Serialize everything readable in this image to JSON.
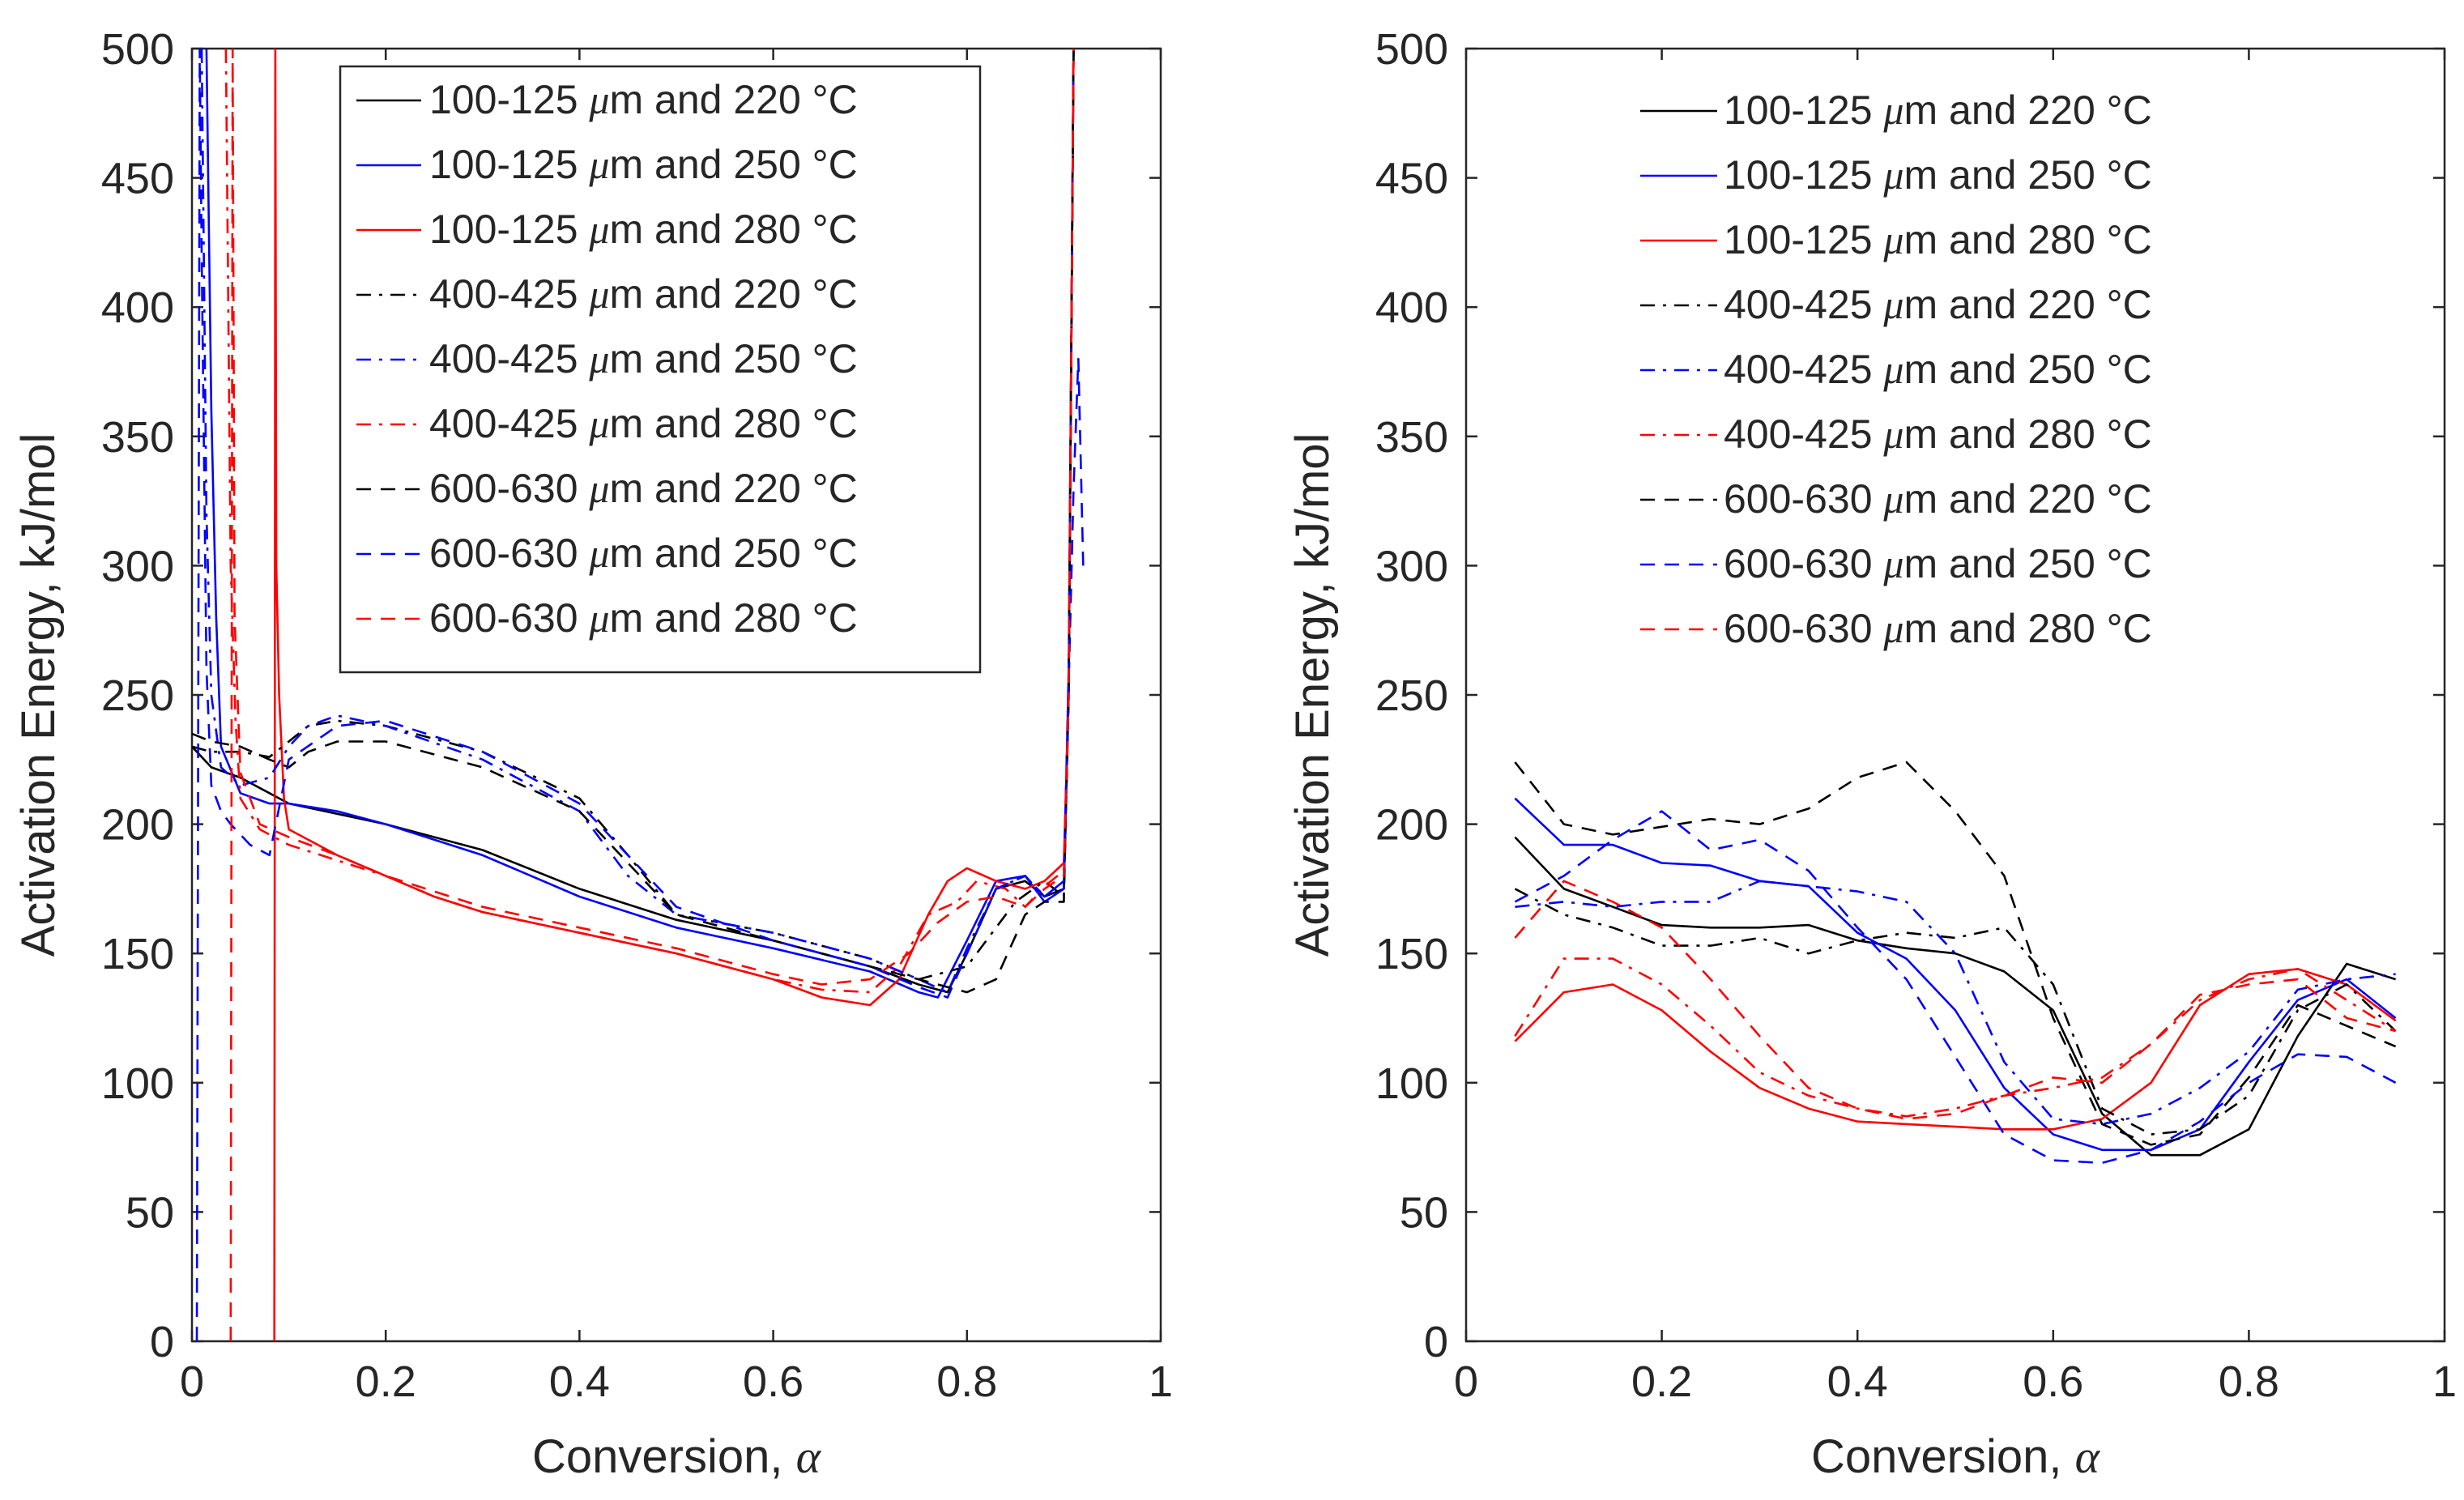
{
  "chart_data": [
    {
      "type": "line",
      "panel": "left",
      "xlabel": "Conversion, α",
      "ylabel": "Activation Energy, kJ/mol",
      "xlim": [
        0,
        1
      ],
      "ylim": [
        0,
        500
      ],
      "xticks": [
        0,
        0.2,
        0.4,
        0.6,
        0.8,
        1
      ],
      "xtick_labels": [
        "0",
        "0.2",
        "0.4",
        "0.6",
        "0.8",
        "1"
      ],
      "yticks": [
        0,
        50,
        100,
        150,
        200,
        250,
        300,
        350,
        400,
        450,
        500
      ],
      "ytick_labels": [
        "0",
        "50",
        "100",
        "150",
        "200",
        "250",
        "300",
        "350",
        "400",
        "450",
        "500"
      ],
      "grid": false,
      "legend_position": "top-right",
      "series": [
        {
          "name": "100-125 μm and 220 °C",
          "color": "#000000",
          "dash": "solid",
          "x": [
            0.0,
            0.02,
            0.05,
            0.08,
            0.1,
            0.15,
            0.2,
            0.3,
            0.4,
            0.5,
            0.6,
            0.65,
            0.7,
            0.75,
            0.78,
            0.8,
            0.83,
            0.86,
            0.88,
            0.9,
            0.905,
            0.91
          ],
          "y": [
            230,
            222,
            218,
            212,
            208,
            204,
            200,
            190,
            175,
            163,
            155,
            150,
            145,
            138,
            135,
            150,
            175,
            178,
            172,
            175,
            250,
            500
          ]
        },
        {
          "name": "100-125 μm and 250 °C",
          "color": "#0000ff",
          "dash": "solid",
          "x": [
            0.015,
            0.02,
            0.025,
            0.03,
            0.05,
            0.08,
            0.1,
            0.15,
            0.2,
            0.3,
            0.4,
            0.5,
            0.6,
            0.7,
            0.75,
            0.77,
            0.8,
            0.83,
            0.86,
            0.88,
            0.9,
            0.905,
            0.91
          ],
          "y": [
            500,
            360,
            280,
            230,
            212,
            208,
            208,
            205,
            200,
            188,
            172,
            160,
            152,
            143,
            135,
            133,
            155,
            178,
            180,
            170,
            175,
            260,
            500
          ]
        },
        {
          "name": "100-125 μm and 280 °C",
          "color": "#ff0000",
          "dash": "solid",
          "x": [
            0.085,
            0.086,
            0.087,
            0.09,
            0.095,
            0.1,
            0.15,
            0.2,
            0.25,
            0.3,
            0.4,
            0.5,
            0.6,
            0.65,
            0.7,
            0.73,
            0.76,
            0.78,
            0.8,
            0.83,
            0.86,
            0.88,
            0.9,
            0.905,
            0.91
          ],
          "y": [
            0,
            500,
            300,
            250,
            210,
            198,
            188,
            180,
            172,
            166,
            158,
            150,
            140,
            133,
            130,
            140,
            165,
            178,
            183,
            178,
            175,
            178,
            185,
            250,
            500
          ]
        },
        {
          "name": "400-425 μm and 220 °C",
          "color": "#000000",
          "dash": "dashdot",
          "x": [
            0.0,
            0.02,
            0.05,
            0.08,
            0.1,
            0.12,
            0.15,
            0.2,
            0.3,
            0.4,
            0.45,
            0.5,
            0.6,
            0.7,
            0.75,
            0.8,
            0.85,
            0.88,
            0.9,
            0.905,
            0.91
          ],
          "y": [
            230,
            228,
            228,
            226,
            232,
            238,
            240,
            238,
            228,
            210,
            188,
            165,
            158,
            148,
            140,
            145,
            170,
            178,
            172,
            250,
            500
          ]
        },
        {
          "name": "400-425 μm and 250 °C",
          "color": "#0000ff",
          "dash": "dashdot",
          "x": [
            0.01,
            0.015,
            0.02,
            0.03,
            0.05,
            0.08,
            0.1,
            0.12,
            0.15,
            0.2,
            0.3,
            0.4,
            0.45,
            0.5,
            0.6,
            0.7,
            0.75,
            0.78,
            0.8,
            0.83,
            0.86,
            0.88,
            0.9,
            0.905,
            0.91
          ],
          "y": [
            500,
            320,
            250,
            222,
            215,
            218,
            230,
            238,
            242,
            238,
            225,
            205,
            180,
            165,
            158,
            148,
            140,
            135,
            152,
            175,
            180,
            172,
            178,
            260,
            500
          ]
        },
        {
          "name": "400-425 μm and 280 °C",
          "color": "#ff0000",
          "dash": "dashdot",
          "x": [
            0.035,
            0.04,
            0.045,
            0.05,
            0.07,
            0.1,
            0.15,
            0.2,
            0.25,
            0.3,
            0.4,
            0.5,
            0.6,
            0.65,
            0.7,
            0.73,
            0.76,
            0.79,
            0.81,
            0.84,
            0.86,
            0.88,
            0.9,
            0.905,
            0.91
          ],
          "y": [
            500,
            300,
            240,
            210,
            198,
            192,
            186,
            180,
            172,
            166,
            158,
            150,
            140,
            136,
            135,
            145,
            165,
            170,
            178,
            175,
            168,
            176,
            182,
            250,
            500
          ]
        },
        {
          "name": "600-630 μm and 220 °C",
          "color": "#000000",
          "dash": "dashed",
          "x": [
            0.0,
            0.02,
            0.05,
            0.08,
            0.1,
            0.12,
            0.15,
            0.2,
            0.3,
            0.4,
            0.45,
            0.5,
            0.6,
            0.7,
            0.75,
            0.8,
            0.83,
            0.86,
            0.88,
            0.9,
            0.905,
            0.91
          ],
          "y": [
            235,
            232,
            230,
            225,
            222,
            228,
            232,
            232,
            222,
            205,
            185,
            165,
            155,
            145,
            140,
            135,
            140,
            165,
            170,
            170,
            250,
            500
          ]
        },
        {
          "name": "600-630 μm and 250 °C",
          "color": "#0000ff",
          "dash": "dashed",
          "x": [
            0.005,
            0.008,
            0.01,
            0.015,
            0.02,
            0.03,
            0.04,
            0.06,
            0.08,
            0.1,
            0.15,
            0.2,
            0.3,
            0.4,
            0.45,
            0.5,
            0.6,
            0.7,
            0.75,
            0.78,
            0.8,
            0.83,
            0.86,
            0.88,
            0.9,
            0.91,
            0.915,
            0.92
          ],
          "y": [
            0,
            500,
            420,
            260,
            215,
            205,
            200,
            192,
            188,
            225,
            238,
            240,
            228,
            208,
            188,
            168,
            155,
            145,
            137,
            133,
            150,
            175,
            180,
            172,
            178,
            330,
            380,
            300
          ]
        },
        {
          "name": "600-630 μm and 280 °C",
          "color": "#ff0000",
          "dash": "dashed",
          "x": [
            0.04,
            0.042,
            0.044,
            0.05,
            0.07,
            0.1,
            0.15,
            0.2,
            0.3,
            0.4,
            0.5,
            0.6,
            0.65,
            0.7,
            0.74,
            0.77,
            0.8,
            0.83,
            0.86,
            0.88,
            0.9,
            0.905,
            0.91
          ],
          "y": [
            0,
            500,
            280,
            220,
            200,
            195,
            188,
            180,
            168,
            160,
            152,
            142,
            138,
            140,
            150,
            162,
            170,
            172,
            168,
            175,
            180,
            250,
            500
          ]
        }
      ]
    },
    {
      "type": "line",
      "panel": "right",
      "xlabel": "Conversion, α",
      "ylabel": "Activation Energy, kJ/mol",
      "xlim": [
        0,
        1
      ],
      "ylim": [
        0,
        500
      ],
      "xticks": [
        0,
        0.2,
        0.4,
        0.6,
        0.8,
        1
      ],
      "xtick_labels": [
        "0",
        "0.2",
        "0.4",
        "0.6",
        "0.8",
        "1"
      ],
      "yticks": [
        0,
        50,
        100,
        150,
        200,
        250,
        300,
        350,
        400,
        450,
        500
      ],
      "ytick_labels": [
        "0",
        "50",
        "100",
        "150",
        "200",
        "250",
        "300",
        "350",
        "400",
        "450",
        "500"
      ],
      "grid": false,
      "legend_position": "top-right (no box)",
      "series": [
        {
          "name": "100-125 μm and 220 °C",
          "color": "#000000",
          "dash": "solid",
          "x": [
            0.05,
            0.1,
            0.15,
            0.2,
            0.25,
            0.3,
            0.35,
            0.4,
            0.45,
            0.5,
            0.55,
            0.6,
            0.65,
            0.7,
            0.75,
            0.8,
            0.85,
            0.9,
            0.95
          ],
          "y": [
            195,
            175,
            168,
            161,
            160,
            160,
            161,
            155,
            152,
            150,
            143,
            128,
            88,
            72,
            72,
            82,
            118,
            146,
            140
          ]
        },
        {
          "name": "100-125 μm and 250 °C",
          "color": "#0000ff",
          "dash": "solid",
          "x": [
            0.05,
            0.1,
            0.15,
            0.2,
            0.25,
            0.3,
            0.35,
            0.4,
            0.45,
            0.5,
            0.55,
            0.6,
            0.65,
            0.7,
            0.75,
            0.8,
            0.85,
            0.9,
            0.95
          ],
          "y": [
            210,
            192,
            192,
            185,
            184,
            178,
            176,
            158,
            148,
            128,
            98,
            80,
            74,
            74,
            82,
            108,
            132,
            140,
            125
          ]
        },
        {
          "name": "100-125 μm and 280 °C",
          "color": "#ff0000",
          "dash": "solid",
          "x": [
            0.05,
            0.1,
            0.15,
            0.2,
            0.25,
            0.3,
            0.35,
            0.4,
            0.45,
            0.5,
            0.55,
            0.6,
            0.65,
            0.7,
            0.75,
            0.8,
            0.85,
            0.9,
            0.95
          ],
          "y": [
            116,
            135,
            138,
            128,
            112,
            98,
            90,
            85,
            84,
            83,
            82,
            82,
            86,
            100,
            130,
            142,
            144,
            138,
            124
          ]
        },
        {
          "name": "400-425 μm and 220 °C",
          "color": "#000000",
          "dash": "dashdot",
          "x": [
            0.05,
            0.1,
            0.15,
            0.2,
            0.25,
            0.3,
            0.35,
            0.4,
            0.45,
            0.5,
            0.55,
            0.6,
            0.65,
            0.7,
            0.75,
            0.8,
            0.85,
            0.9,
            0.95
          ],
          "y": [
            175,
            165,
            160,
            153,
            153,
            156,
            150,
            155,
            158,
            156,
            160,
            138,
            90,
            80,
            82,
            95,
            128,
            138,
            120
          ]
        },
        {
          "name": "400-425 μm and 250 °C",
          "color": "#0000ff",
          "dash": "dashdot",
          "x": [
            0.05,
            0.1,
            0.15,
            0.2,
            0.25,
            0.3,
            0.35,
            0.4,
            0.45,
            0.5,
            0.55,
            0.6,
            0.65,
            0.7,
            0.75,
            0.8,
            0.85,
            0.9,
            0.95
          ],
          "y": [
            168,
            170,
            168,
            170,
            170,
            178,
            176,
            174,
            170,
            150,
            108,
            86,
            84,
            88,
            98,
            112,
            136,
            140,
            142
          ]
        },
        {
          "name": "400-425 μm and 280 °C",
          "color": "#ff0000",
          "dash": "dashdot",
          "x": [
            0.05,
            0.1,
            0.15,
            0.2,
            0.25,
            0.3,
            0.35,
            0.4,
            0.45,
            0.5,
            0.55,
            0.6,
            0.65,
            0.7,
            0.75,
            0.8,
            0.85,
            0.9,
            0.95
          ],
          "y": [
            118,
            148,
            148,
            138,
            122,
            104,
            95,
            90,
            87,
            90,
            95,
            98,
            102,
            115,
            132,
            140,
            144,
            132,
            120
          ]
        },
        {
          "name": "600-630 μm and 220 °C",
          "color": "#000000",
          "dash": "dashed",
          "x": [
            0.05,
            0.1,
            0.15,
            0.2,
            0.25,
            0.3,
            0.35,
            0.4,
            0.45,
            0.5,
            0.55,
            0.6,
            0.65,
            0.7,
            0.75,
            0.8,
            0.85,
            0.9,
            0.95
          ],
          "y": [
            224,
            200,
            196,
            199,
            202,
            200,
            206,
            218,
            224,
            205,
            180,
            125,
            84,
            76,
            80,
            102,
            130,
            122,
            114
          ]
        },
        {
          "name": "600-630 μm and 250 °C",
          "color": "#0000ff",
          "dash": "dashed",
          "x": [
            0.05,
            0.1,
            0.15,
            0.2,
            0.25,
            0.3,
            0.35,
            0.4,
            0.45,
            0.5,
            0.55,
            0.6,
            0.65,
            0.7,
            0.75,
            0.8,
            0.85,
            0.9,
            0.95
          ],
          "y": [
            170,
            180,
            194,
            205,
            190,
            194,
            182,
            160,
            140,
            110,
            80,
            70,
            69,
            74,
            85,
            100,
            111,
            110,
            100
          ]
        },
        {
          "name": "600-630 μm and 280 °C",
          "color": "#ff0000",
          "dash": "dashed",
          "x": [
            0.05,
            0.1,
            0.15,
            0.2,
            0.25,
            0.3,
            0.35,
            0.4,
            0.45,
            0.5,
            0.55,
            0.6,
            0.65,
            0.7,
            0.75,
            0.8,
            0.85,
            0.9,
            0.95
          ],
          "y": [
            156,
            178,
            170,
            160,
            140,
            118,
            98,
            90,
            86,
            88,
            95,
            102,
            100,
            115,
            134,
            138,
            140,
            125,
            120
          ]
        }
      ]
    }
  ]
}
